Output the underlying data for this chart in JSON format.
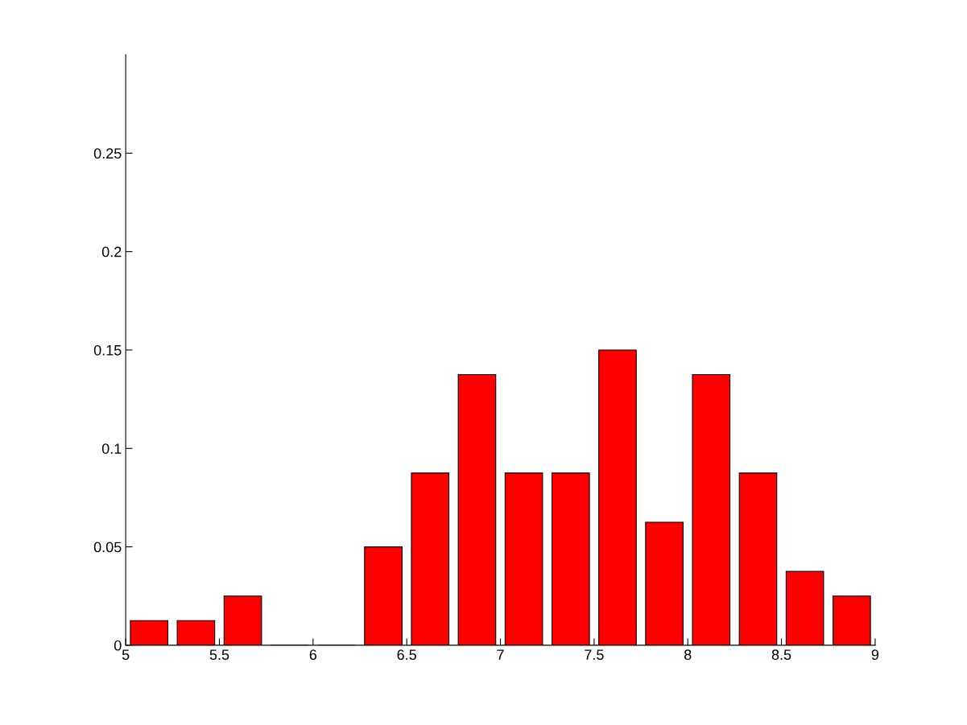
{
  "chart_data": {
    "type": "histogram",
    "bins": [
      5,
      5.25,
      5.5,
      5.75,
      6,
      6.25,
      6.5,
      6.75,
      7,
      7.25,
      7.5,
      7.75,
      8,
      8.25,
      8.5,
      8.75,
      9
    ],
    "values": [
      0.0125,
      0.0125,
      0.025,
      0,
      0,
      0.05,
      0.0875,
      0.1375,
      0.0875,
      0.0875,
      0.15,
      0.0625,
      0.1375,
      0.0875,
      0.0375,
      0.025
    ],
    "color": "#ff0000",
    "xlim": [
      5,
      9
    ],
    "xticks": [
      5,
      5.5,
      6,
      6.5,
      7,
      7.5,
      8,
      8.5,
      9
    ],
    "ylim": [
      0,
      0.3
    ],
    "yticks": [
      0,
      0.05,
      0.1,
      0.15,
      0.2,
      0.25
    ],
    "grid": false
  }
}
